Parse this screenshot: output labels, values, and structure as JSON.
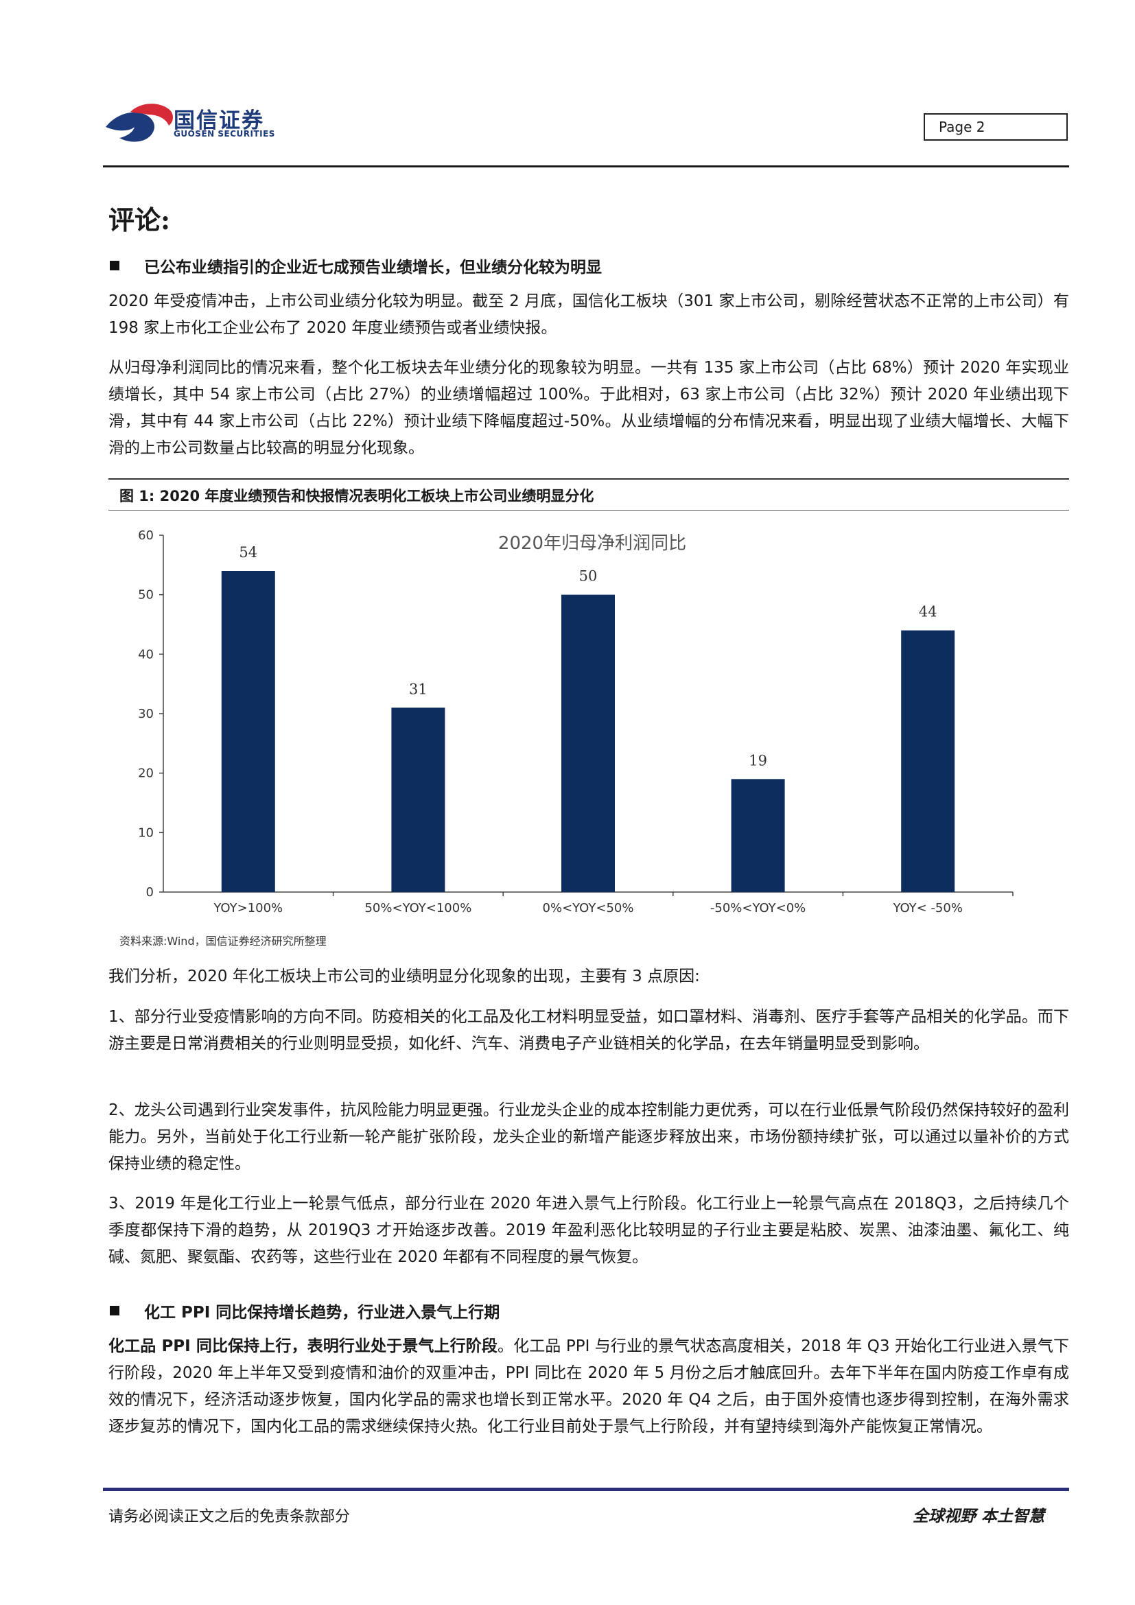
{
  "header": {
    "logo_cn": "国信证券",
    "logo_en": "GUOSEN SECURITIES",
    "page_label": "Page  2"
  },
  "section_title": "评论:",
  "bullet1": "已公布业绩指引的企业近七成预告业绩增长，但业绩分化较为明显",
  "para1": "2020 年受疫情冲击，上市公司业绩分化较为明显。截至 2 月底，国信化工板块（301 家上市公司，剔除经营状态不正常的上市公司）有 198 家上市化工企业公布了 2020 年度业绩预告或者业绩快报。",
  "para2": "从归母净利润同比的情况来看，整个化工板块去年业绩分化的现象较为明显。一共有 135 家上市公司（占比 68%）预计 2020 年实现业绩增长，其中 54 家上市公司（占比 27%）的业绩增幅超过 100%。于此相对，63 家上市公司（占比 32%）预计 2020 年业绩出现下滑，其中有 44 家上市公司（占比 22%）预计业绩下降幅度超过-50%。从业绩增幅的分布情况来看，明显出现了业绩大幅增长、大幅下滑的上市公司数量占比较高的明显分化现象。",
  "figure": {
    "caption": "图 1:  2020 年度业绩预告和快报情况表明化工板块上市公司业绩明显分化",
    "source": "资料来源:Wind，国信证券经济研究所整理"
  },
  "chart_data": {
    "type": "bar",
    "title": "2020年归母净利润同比",
    "categories": [
      "YOY>100%",
      "50%<YOY<100%",
      "0%<YOY<50%",
      "-50%<YOY<0%",
      "YOY< -50%"
    ],
    "values": [
      54,
      31,
      50,
      19,
      44
    ],
    "ylim": [
      0,
      60
    ],
    "yticks": [
      0,
      10,
      20,
      30,
      40,
      50,
      60
    ],
    "bar_color": "#0d2d5e",
    "grid": false,
    "data_labels": true
  },
  "para3": "我们分析，2020 年化工板块上市公司的业绩明显分化现象的出现，主要有 3 点原因:",
  "para4": "1、部分行业受疫情影响的方向不同。防疫相关的化工品及化工材料明显受益，如口罩材料、消毒剂、医疗手套等产品相关的化学品。而下游主要是日常消费相关的行业则明显受损，如化纤、汽车、消费电子产业链相关的化学品，在去年销量明显受到影响。",
  "para5": "2、龙头公司遇到行业突发事件，抗风险能力明显更强。行业龙头企业的成本控制能力更优秀，可以在行业低景气阶段仍然保持较好的盈利能力。另外，当前处于化工行业新一轮产能扩张阶段，龙头企业的新增产能逐步释放出来，市场份额持续扩张，可以通过以量补价的方式保持业绩的稳定性。",
  "para6": "3、2019 年是化工行业上一轮景气低点，部分行业在 2020 年进入景气上行阶段。化工行业上一轮景气高点在 2018Q3，之后持续几个季度都保持下滑的趋势，从 2019Q3 才开始逐步改善。2019 年盈利恶化比较明显的子行业主要是粘胶、炭黑、油漆油墨、氟化工、纯碱、氮肥、聚氨酯、农药等，这些行业在 2020 年都有不同程度的景气恢复。",
  "bullet2": "化工 PPI 同比保持增长趋势，行业进入景气上行期",
  "para7_bold": "化工品 PPI 同比保持上行，表明行业处于景气上行阶段",
  "para7_rest": "。化工品 PPI 与行业的景气状态高度相关，2018 年 Q3 开始化工行业进入景气下行阶段，2020 年上半年又受到疫情和油价的双重冲击，PPI 同比在 2020 年 5 月份之后才触底回升。去年下半年在国内防疫工作卓有成效的情况下，经济活动逐步恢复，国内化学品的需求也增长到正常水平。2020 年 Q4 之后，由于国外疫情也逐步得到控制，在海外需求逐步复苏的情况下，国内化工品的需求继续保持火热。化工行业目前处于景气上行阶段，并有望持续到海外产能恢复正常情况。",
  "footer": {
    "disclaimer": "请务必阅读正文之后的免责条款部分",
    "slogan": "全球视野  本土智慧"
  }
}
